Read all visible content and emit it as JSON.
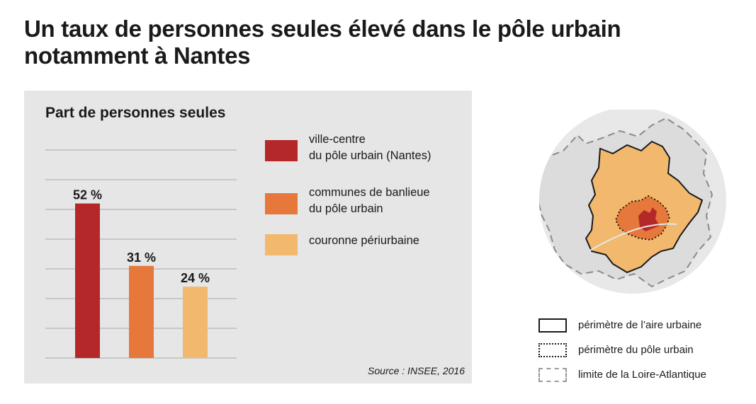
{
  "title_line1": "Un taux de personnes seules élevé dans le pôle urbain",
  "title_line2": "notamment à Nantes",
  "chart_data": {
    "type": "bar",
    "title": "Part de personnes seules",
    "categories": [
      "ville-centre du pôle urbain (Nantes)",
      "communes de banlieue du pôle urbain",
      "couronne périurbaine"
    ],
    "values": [
      52,
      31,
      24
    ],
    "value_labels": [
      "52 %",
      "31 %",
      "24 %"
    ],
    "colors": [
      "#b5282a",
      "#e5783a",
      "#f2b96e"
    ],
    "ylim": [
      0,
      70
    ],
    "grid": true,
    "legend_position": "right",
    "legend": [
      {
        "lines": [
          "ville-centre",
          "du pôle urbain (Nantes)"
        ],
        "color": "#b5282a"
      },
      {
        "lines": [
          "communes de banlieue",
          "du pôle urbain"
        ],
        "color": "#e5783a"
      },
      {
        "lines": [
          "couronne périurbaine"
        ],
        "color": "#f2b96e"
      }
    ],
    "source": "Source : INSEE, 2016"
  },
  "map": {
    "colors": {
      "background": "#e8e8e8",
      "aire_urbaine": "#f2b96e",
      "pole_urbain": "#e5783a",
      "ville_centre": "#b5282a"
    },
    "legend": [
      {
        "label": "périmètre de l’aire urbaine",
        "style": "solid"
      },
      {
        "label": "périmètre du pôle urbain",
        "style": "dotted"
      },
      {
        "label": "limite de la Loire-Atlantique",
        "style": "dashed"
      }
    ]
  }
}
